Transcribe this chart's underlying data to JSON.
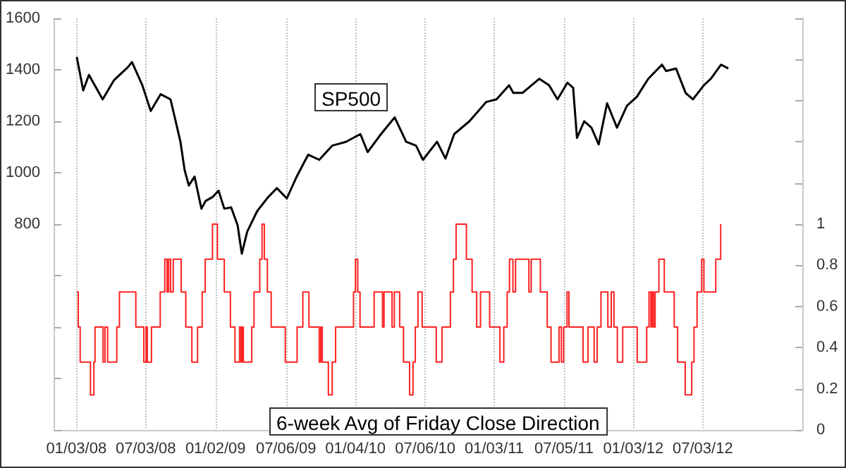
{
  "chart_data": {
    "type": "line",
    "xlim": [
      "2007-11-06",
      "2013-03-21"
    ],
    "xticks": [
      {
        "value": "2008-01-03",
        "label": "01/03/08"
      },
      {
        "value": "2008-07-03",
        "label": "07/03/08"
      },
      {
        "value": "2009-01-02",
        "label": "01/02/09"
      },
      {
        "value": "2009-07-06",
        "label": "07/06/09"
      },
      {
        "value": "2010-01-04",
        "label": "01/04/10"
      },
      {
        "value": "2010-07-06",
        "label": "07/06/10"
      },
      {
        "value": "2011-01-03",
        "label": "01/03/11"
      },
      {
        "value": "2011-07-05",
        "label": "07/05/11"
      },
      {
        "value": "2012-01-03",
        "label": "01/03/12"
      },
      {
        "value": "2012-07-03",
        "label": "07/03/12"
      }
    ],
    "ylim": [
      0,
      1600
    ],
    "yticks": [
      {
        "value": 0,
        "label": null
      },
      {
        "value": 200,
        "label": null
      },
      {
        "value": 400,
        "label": null
      },
      {
        "value": 600,
        "label": null
      },
      800,
      1000,
      1200,
      1400,
      1600
    ],
    "y2lim": [
      0,
      2
    ],
    "y2ticks": [
      0,
      0.2,
      0.4,
      0.6,
      0.8,
      1,
      {
        "value": 1.2,
        "label": null
      },
      {
        "value": 1.4,
        "label": null
      },
      {
        "value": 1.6,
        "label": null
      },
      {
        "value": 1.8,
        "label": null
      },
      {
        "value": 2,
        "label": null
      }
    ],
    "grid": "x",
    "legend": false,
    "marker": "none",
    "series": [
      {
        "name": "SP500",
        "color": "#000000",
        "x": [
          "2008-01-04",
          "2008-01-21",
          "2008-02-05",
          "2008-03-12",
          "2008-04-11",
          "2008-05-17",
          "2008-05-28",
          "2008-06-24",
          "2008-07-16",
          "2008-08-11",
          "2008-09-06",
          "2008-09-21",
          "2008-10-02",
          "2008-10-13",
          "2008-10-24",
          "2008-11-08",
          "2008-11-26",
          "2008-12-07",
          "2008-12-25",
          "2009-01-10",
          "2009-01-25",
          "2009-02-12",
          "2009-03-01",
          "2009-03-12",
          "2009-03-26",
          "2009-04-21",
          "2009-05-20",
          "2009-06-12",
          "2009-07-08",
          "2009-08-03",
          "2009-09-02",
          "2009-10-01",
          "2009-11-04",
          "2009-12-10",
          "2010-01-17",
          "2010-02-05",
          "2010-03-12",
          "2010-04-17",
          "2010-05-17",
          "2010-06-12",
          "2010-06-30",
          "2010-08-06",
          "2010-08-28",
          "2010-09-20",
          "2010-10-30",
          "2010-12-13",
          "2011-01-09",
          "2011-02-11",
          "2011-02-22",
          "2011-03-18",
          "2011-05-01",
          "2011-05-27",
          "2011-06-18",
          "2011-07-14",
          "2011-07-29",
          "2011-08-08",
          "2011-08-27",
          "2011-09-15",
          "2011-10-04",
          "2011-10-26",
          "2011-11-21",
          "2011-12-17",
          "2012-01-12",
          "2012-02-11",
          "2012-03-18",
          "2012-03-29",
          "2012-04-24",
          "2012-05-19",
          "2012-06-07",
          "2012-07-06",
          "2012-07-24",
          "2012-08-20",
          "2012-09-08"
        ],
        "values": [
          1450,
          1320,
          1380,
          1285,
          1360,
          1410,
          1430,
          1340,
          1240,
          1305,
          1285,
          1190,
          1120,
          1010,
          950,
          985,
          860,
          890,
          905,
          930,
          860,
          865,
          795,
          685,
          770,
          850,
          905,
          940,
          900,
          985,
          1070,
          1050,
          1105,
          1120,
          1150,
          1080,
          1150,
          1215,
          1120,
          1105,
          1050,
          1120,
          1055,
          1150,
          1200,
          1275,
          1285,
          1340,
          1310,
          1310,
          1365,
          1340,
          1285,
          1350,
          1330,
          1135,
          1200,
          1175,
          1110,
          1270,
          1175,
          1260,
          1295,
          1365,
          1420,
          1395,
          1405,
          1310,
          1285,
          1340,
          1365,
          1420,
          1405
        ]
      },
      {
        "name": "6-week Avg of Friday Close Direction",
        "type": "step",
        "axis": "y2",
        "color": "#ff2020",
        "x": [
          "2008-01-04",
          "2008-01-08",
          "2008-01-13",
          "2008-02-09",
          "2008-02-18",
          "2008-02-21",
          "2008-03-13",
          "2008-03-18",
          "2008-03-25",
          "2008-04-18",
          "2008-04-25",
          "2008-06-07",
          "2008-06-28",
          "2008-07-04",
          "2008-07-07",
          "2008-07-18",
          "2008-08-10",
          "2008-08-22",
          "2008-08-28",
          "2008-09-01",
          "2008-09-06",
          "2008-09-13",
          "2008-10-04",
          "2008-10-16",
          "2008-11-01",
          "2008-11-16",
          "2008-11-28",
          "2008-12-06",
          "2008-12-25",
          "2009-01-07",
          "2009-01-25",
          "2009-02-10",
          "2009-02-22",
          "2009-03-06",
          "2009-03-10",
          "2009-03-13",
          "2009-03-16",
          "2009-04-07",
          "2009-04-13",
          "2009-04-28",
          "2009-05-04",
          "2009-05-10",
          "2009-05-18",
          "2009-05-28",
          "2009-07-04",
          "2009-08-04",
          "2009-08-19",
          "2009-09-04",
          "2009-10-01",
          "2009-10-05",
          "2009-10-09",
          "2009-10-25",
          "2009-11-04",
          "2009-11-13",
          "2009-12-30",
          "2010-01-04",
          "2010-01-10",
          "2010-01-16",
          "2010-02-22",
          "2010-03-16",
          "2010-03-20",
          "2010-04-10",
          "2010-04-16",
          "2010-04-30",
          "2010-05-10",
          "2010-05-26",
          "2010-06-04",
          "2010-06-10",
          "2010-06-17",
          "2010-06-28",
          "2010-08-04",
          "2010-08-19",
          "2010-09-10",
          "2010-09-18",
          "2010-09-25",
          "2010-10-22",
          "2010-11-06",
          "2010-11-18",
          "2010-11-28",
          "2010-12-22",
          "2011-01-18",
          "2011-01-28",
          "2011-02-06",
          "2011-02-12",
          "2011-02-21",
          "2011-02-28",
          "2011-04-04",
          "2011-04-10",
          "2011-05-04",
          "2011-05-22",
          "2011-06-01",
          "2011-06-22",
          "2011-06-28",
          "2011-07-04",
          "2011-07-13",
          "2011-07-18",
          "2011-08-24",
          "2011-09-06",
          "2011-09-22",
          "2011-09-30",
          "2011-10-10",
          "2011-10-28",
          "2011-11-06",
          "2011-11-13",
          "2011-11-22",
          "2011-12-06",
          "2012-01-13",
          "2012-02-07",
          "2012-02-13",
          "2012-02-18",
          "2012-02-21",
          "2012-02-25",
          "2012-02-29",
          "2012-03-10",
          "2012-03-24",
          "2012-04-19",
          "2012-04-28",
          "2012-05-18",
          "2012-06-04",
          "2012-06-10",
          "2012-06-18",
          "2012-06-30",
          "2012-07-06",
          "2012-08-06",
          "2012-08-19",
          "2012-08-21"
        ],
        "values": [
          0.67,
          0.5,
          0.33,
          0.17,
          0.33,
          0.5,
          0.33,
          0.5,
          0.33,
          0.5,
          0.67,
          0.5,
          0.33,
          0.5,
          0.33,
          0.5,
          0.67,
          0.83,
          0.67,
          0.83,
          0.67,
          0.83,
          0.67,
          0.5,
          0.33,
          0.5,
          0.67,
          0.83,
          1,
          0.83,
          0.67,
          0.5,
          0.33,
          0.5,
          0.33,
          0.5,
          0.33,
          0.5,
          0.67,
          0.83,
          1,
          0.83,
          0.67,
          0.5,
          0.33,
          0.5,
          0.67,
          0.5,
          0.33,
          0.5,
          0.33,
          0.17,
          0.33,
          0.5,
          0.67,
          0.83,
          0.67,
          0.5,
          0.67,
          0.5,
          0.67,
          0.5,
          0.67,
          0.5,
          0.33,
          0.17,
          0.33,
          0.5,
          0.67,
          0.5,
          0.33,
          0.5,
          0.67,
          0.83,
          1,
          0.83,
          0.67,
          0.5,
          0.67,
          0.5,
          0.33,
          0.5,
          0.67,
          0.83,
          0.67,
          0.83,
          0.67,
          0.83,
          0.67,
          0.5,
          0.33,
          0.5,
          0.33,
          0.5,
          0.67,
          0.5,
          0.33,
          0.5,
          0.33,
          0.5,
          0.67,
          0.5,
          0.67,
          0.5,
          0.33,
          0.5,
          0.33,
          0.5,
          0.67,
          0.5,
          0.67,
          0.5,
          0.67,
          0.83,
          0.67,
          0.5,
          0.33,
          0.17,
          0.33,
          0.5,
          0.67,
          0.83,
          0.67,
          0.83,
          1,
          1
        ]
      }
    ]
  }
}
